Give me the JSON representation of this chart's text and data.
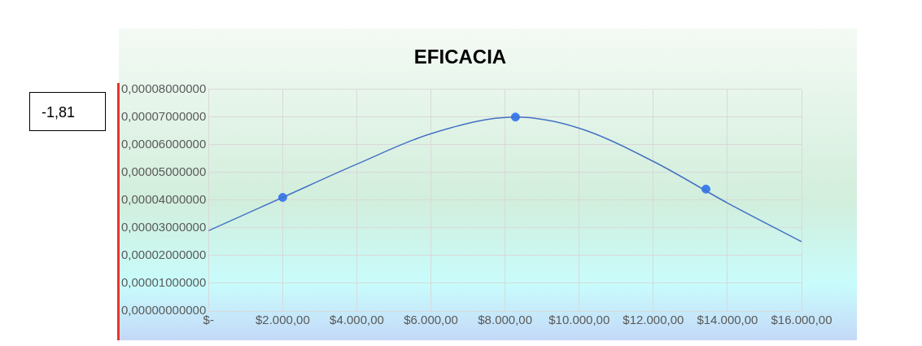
{
  "chart_data": {
    "type": "line",
    "title": "EFICACIA",
    "series": [
      {
        "type": "line",
        "color": "#4472c4",
        "marker": "none",
        "x": [
          0,
          2000,
          4000,
          6000,
          8280,
          10000,
          12000,
          14000,
          16000
        ],
        "values": [
          2.9e-05,
          4.1e-05,
          5.3e-05,
          6.4e-05,
          7e-05,
          6.6e-05,
          5.4e-05,
          3.9e-05,
          2.5e-05
        ]
      },
      {
        "type": "scatter",
        "color": "#3d7ef0",
        "marker": "circle",
        "x": [
          2000,
          8280,
          13420
        ],
        "values": [
          4.1e-05,
          7e-05,
          4.4e-05
        ]
      }
    ],
    "xlim": [
      0,
      16000
    ],
    "xticks": [
      {
        "value": 0,
        "label": "$-"
      },
      {
        "value": 2000,
        "label": "$2.000,00"
      },
      {
        "value": 4000,
        "label": "$4.000,00"
      },
      {
        "value": 6000,
        "label": "$6.000,00"
      },
      {
        "value": 8000,
        "label": "$8.000,00"
      },
      {
        "value": 10000,
        "label": "$10.000,00"
      },
      {
        "value": 12000,
        "label": "$12.000,00"
      },
      {
        "value": 14000,
        "label": "$14.000,00"
      },
      {
        "value": 16000,
        "label": "$16.000,00"
      }
    ],
    "ylim": [
      0,
      8e-05
    ],
    "yticks": [
      {
        "value": 0,
        "label": "0,00000000000"
      },
      {
        "value": 1e-05,
        "label": "0,00001000000"
      },
      {
        "value": 2e-05,
        "label": "0,00002000000"
      },
      {
        "value": 3e-05,
        "label": "0,00003000000"
      },
      {
        "value": 4e-05,
        "label": "0,00004000000"
      },
      {
        "value": 5e-05,
        "label": "0,00005000000"
      },
      {
        "value": 6e-05,
        "label": "0,00006000000"
      },
      {
        "value": 7e-05,
        "label": "0,00007000000"
      },
      {
        "value": 8e-05,
        "label": "0,00008000000"
      }
    ],
    "grid": true,
    "legend": false,
    "annotations": [
      "-1,81"
    ]
  }
}
